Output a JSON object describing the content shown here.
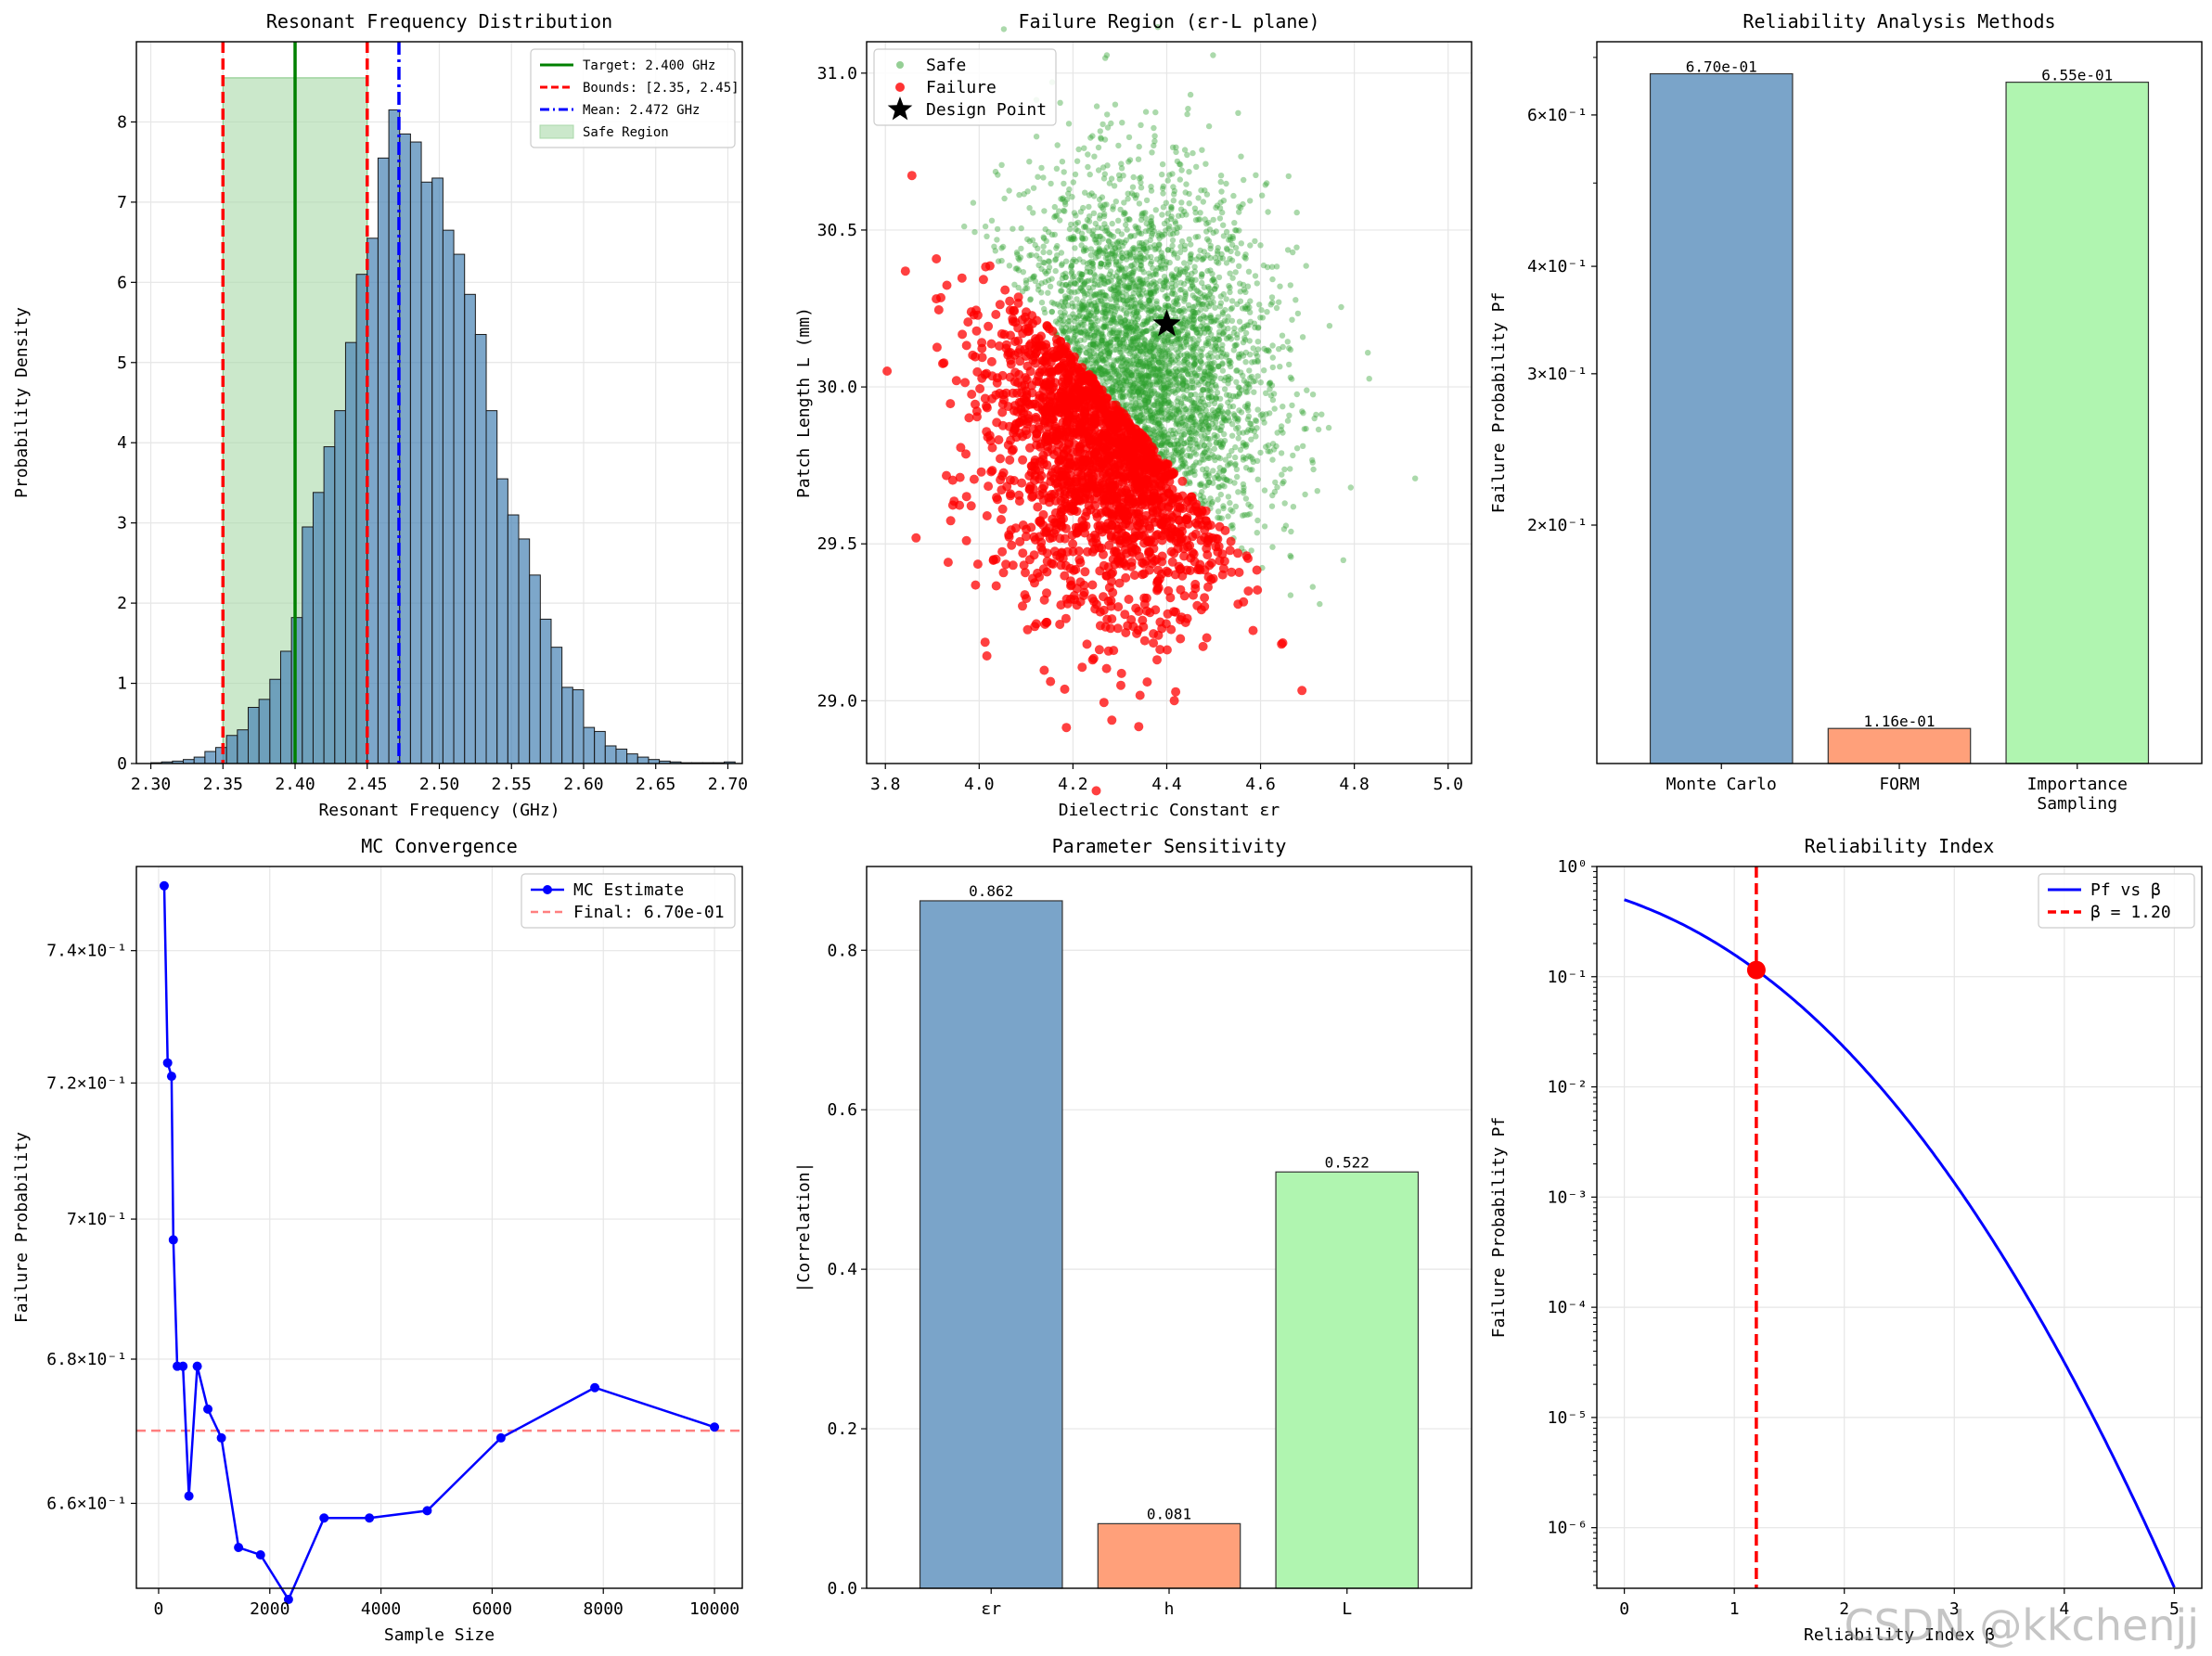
{
  "watermark": "CSDN @kkchenjj",
  "chart_data": [
    {
      "type": "histogram",
      "title": "Resonant Frequency Distribution",
      "xlabel": "Resonant Frequency (GHz)",
      "ylabel": "Probability Density",
      "xlim": [
        2.29,
        2.71
      ],
      "ylim": [
        0,
        9
      ],
      "xticks": [
        "2.30",
        "2.35",
        "2.40",
        "2.45",
        "2.50",
        "2.55",
        "2.60",
        "2.65",
        "2.70"
      ],
      "yticks": [
        "0",
        "1",
        "2",
        "3",
        "4",
        "5",
        "6",
        "7",
        "8"
      ],
      "bin_start": 2.3,
      "bin_width": 0.0075,
      "density": [
        0.01,
        0.02,
        0.03,
        0.05,
        0.08,
        0.15,
        0.2,
        0.35,
        0.42,
        0.7,
        0.8,
        1.05,
        1.4,
        1.82,
        2.95,
        3.38,
        3.95,
        4.4,
        5.25,
        6.1,
        6.55,
        7.55,
        8.15,
        7.85,
        7.75,
        7.25,
        7.3,
        6.65,
        6.35,
        5.85,
        5.35,
        4.4,
        3.55,
        3.1,
        2.8,
        2.35,
        1.8,
        1.45,
        0.95,
        0.92,
        0.45,
        0.4,
        0.22,
        0.18,
        0.12,
        0.08,
        0.05,
        0.03,
        0.02,
        0.01,
        0.01,
        0.01,
        0.01,
        0.02
      ],
      "lines": [
        {
          "name": "Target: 2.400 GHz",
          "x": 2.4,
          "color": "#008000",
          "style": "solid"
        },
        {
          "name": "Bounds: [2.35, 2.45]",
          "x": [
            2.35,
            2.45
          ],
          "color": "#ff0000",
          "style": "dashed"
        },
        {
          "name": "Mean: 2.472 GHz",
          "x": 2.472,
          "color": "#0000ff",
          "style": "dashdot"
        }
      ],
      "safe_region": {
        "name": "Safe Region",
        "x": [
          2.35,
          2.45
        ],
        "height": 8.55,
        "color": "#a9d8a9"
      },
      "legend": "top-right",
      "grid": true
    },
    {
      "type": "scatter",
      "title": "Failure Region (εr-L plane)",
      "xlabel": "Dielectric Constant εr",
      "ylabel": "Patch Length L (mm)",
      "xlim": [
        3.76,
        5.05
      ],
      "ylim": [
        28.8,
        31.1
      ],
      "xticks": [
        "3.8",
        "4.0",
        "4.2",
        "4.4",
        "4.6",
        "4.8",
        "5.0"
      ],
      "yticks": [
        "29.0",
        "29.5",
        "30.0",
        "30.5",
        "31.0"
      ],
      "series": [
        {
          "name": "Safe",
          "color": "#2ca02c"
        },
        {
          "name": "Failure",
          "color": "#ff0000"
        },
        {
          "name": "Design Point",
          "color": "#000000",
          "x": 4.4,
          "y": 30.2
        }
      ],
      "legend": "top-left",
      "grid": true
    },
    {
      "type": "bar",
      "title": "Reliability Analysis Methods",
      "xlabel": "",
      "ylabel": "Failure Probability Pf",
      "scale": "log",
      "ylim": [
        0.1056,
        0.73
      ],
      "yticks": [
        {
          "value": 0.6,
          "label": "6×10⁻¹"
        },
        {
          "value": 0.4,
          "label": "4×10⁻¹"
        },
        {
          "value": 0.3,
          "label": "3×10⁻¹"
        },
        {
          "value": 0.2,
          "label": "2×10⁻¹"
        }
      ],
      "categories": [
        "Monte Carlo",
        "FORM",
        "Importance Sampling"
      ],
      "category_lines": [
        [
          "Monte Carlo"
        ],
        [
          "FORM"
        ],
        [
          "Importance",
          "Sampling"
        ]
      ],
      "values": [
        0.67,
        0.116,
        0.655
      ],
      "labels": [
        "6.70e-01",
        "1.16e-01",
        "6.55e-01"
      ],
      "colors": [
        "#7aa4c9",
        "#ffa07a",
        "#b0f5b0"
      ]
    },
    {
      "type": "line",
      "title": "MC Convergence",
      "xlabel": "Sample Size",
      "ylabel": "Failure Probability",
      "scale": "log",
      "xlim": [
        -400,
        10500
      ],
      "ylim": [
        0.6485,
        0.753
      ],
      "xticks": [
        "0",
        "2000",
        "4000",
        "6000",
        "8000",
        "10000"
      ],
      "yticks": [
        {
          "value": 0.74,
          "label": "7.4×10⁻¹"
        },
        {
          "value": 0.72,
          "label": "7.2×10⁻¹"
        },
        {
          "value": 0.7,
          "label": "7×10⁻¹"
        },
        {
          "value": 0.68,
          "label": "6.8×10⁻¹"
        },
        {
          "value": 0.66,
          "label": "6.6×10⁻¹"
        }
      ],
      "x": [
        100,
        162,
        233,
        264,
        335,
        438,
        545,
        695,
        886,
        1129,
        1438,
        1833,
        2336,
        2976,
        3792,
        4832,
        6158,
        7847,
        10000
      ],
      "series": [
        {
          "name": "MC Estimate",
          "color": "#0000ff",
          "values": [
            0.75,
            0.723,
            0.721,
            0.697,
            0.679,
            0.679,
            0.661,
            0.679,
            0.673,
            0.669,
            0.654,
            0.653,
            0.647,
            0.658,
            0.658,
            0.659,
            0.669,
            0.676,
            0.6705
          ]
        },
        {
          "name": "Final: 6.70e-01",
          "y": 0.67,
          "color": "#ff7f7f",
          "style": "dashed"
        }
      ],
      "legend": "top-right",
      "grid": true
    },
    {
      "type": "bar",
      "title": "Parameter Sensitivity",
      "xlabel": "",
      "ylabel": "|Correlation|",
      "ylim": [
        0,
        0.905
      ],
      "yticks": [
        "0.0",
        "0.2",
        "0.4",
        "0.6",
        "0.8"
      ],
      "categories": [
        "εr",
        "h",
        "L"
      ],
      "values": [
        0.862,
        0.081,
        0.522
      ],
      "labels": [
        "0.862",
        "0.081",
        "0.522"
      ],
      "colors": [
        "#7aa4c9",
        "#ffa07a",
        "#b0f5b0"
      ]
    },
    {
      "type": "line",
      "title": "Reliability Index",
      "xlabel": "Reliability Index β",
      "ylabel": "Failure Probability Pf",
      "scale": "log",
      "xlim": [
        -0.25,
        5.25
      ],
      "ylim": [
        -6.55,
        0
      ],
      "xticks": [
        "0",
        "1",
        "2",
        "3",
        "4",
        "5"
      ],
      "yticks": [
        {
          "exp": 0,
          "label": "10⁰"
        },
        {
          "exp": -1,
          "label": "10⁻¹"
        },
        {
          "exp": -2,
          "label": "10⁻²"
        },
        {
          "exp": -3,
          "label": "10⁻³"
        },
        {
          "exp": -4,
          "label": "10⁻⁴"
        },
        {
          "exp": -5,
          "label": "10⁻⁵"
        },
        {
          "exp": -6,
          "label": "10⁻⁶"
        }
      ],
      "series": [
        {
          "name": "Pf vs β",
          "color": "#0000ff",
          "x_range": [
            0,
            5
          ]
        },
        {
          "name": "β = 1.20",
          "x": 1.2,
          "color": "#ff0000",
          "style": "dashed"
        }
      ],
      "marker": {
        "x": 1.2,
        "y": 0.115,
        "color": "#ff0000"
      },
      "legend": "top-right",
      "grid": true
    }
  ]
}
